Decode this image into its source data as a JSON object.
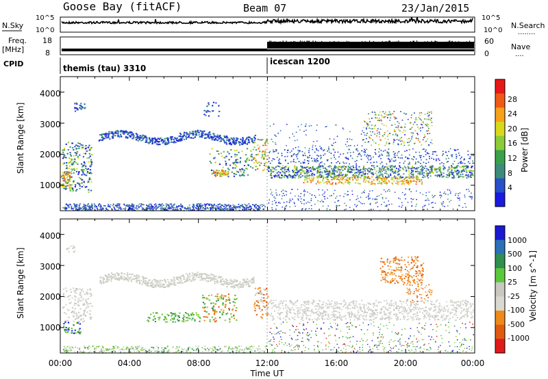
{
  "header": {
    "station": "Goose Bay (fitACF)",
    "beam": "Beam 07",
    "date": "23/Jan/2015"
  },
  "noise_panel": {
    "left_label": "N.Sky",
    "right_label": "N.Search",
    "right_line": "........",
    "left_ticks": [
      "10^5",
      "10^0"
    ],
    "right_ticks": [
      "10^5",
      "10^0"
    ]
  },
  "freq_panel": {
    "left_label_1": "Freq.",
    "left_label_2": "[MHz]",
    "right_label": "Nave",
    "right_line": "....",
    "left_ticks": [
      "18",
      "8"
    ],
    "right_ticks": [
      "60",
      "0"
    ]
  },
  "cpid": {
    "label": "CPID",
    "segments": [
      {
        "start_hour": 0,
        "name": "themis (tau) 3310"
      },
      {
        "start_hour": 12,
        "name": "icescan 1200"
      }
    ]
  },
  "chart_data": [
    {
      "type": "heatmap",
      "quantity": "Power",
      "ylabel": "Slant Range [km]",
      "ylim": [
        180,
        4500
      ],
      "yticks": [
        "1000",
        "2000",
        "3000",
        "4000"
      ],
      "xticks": [
        "00:00",
        "04:00",
        "08:00",
        "12:00",
        "16:00",
        "20:00",
        "00:00"
      ],
      "xlim_hours": [
        0,
        24
      ],
      "colorbar": {
        "label": "Power [dB]",
        "ticks": [
          "28",
          "24",
          "20",
          "16",
          "12",
          "8",
          "4"
        ],
        "colors": [
          "#e81818",
          "#f05a14",
          "#f7a21a",
          "#d9d91c",
          "#8ccc3a",
          "#3aa14a",
          "#3d8c7a",
          "#2850c8",
          "#1a1ae0"
        ]
      }
    },
    {
      "type": "heatmap",
      "quantity": "Velocity",
      "ylabel": "Slant Range [km]",
      "ylim": [
        180,
        4500
      ],
      "yticks": [
        "1000",
        "2000",
        "3000",
        "4000"
      ],
      "xticks": [
        "00:00",
        "04:00",
        "08:00",
        "12:00",
        "16:00",
        "20:00",
        "00:00"
      ],
      "xlim_hours": [
        0,
        24
      ],
      "xlabel": "Time UT",
      "colorbar": {
        "label": "Velocity [m s^-1]",
        "ticks": [
          "1000",
          "500",
          "100",
          "25",
          "-25",
          "-100",
          "-500",
          "-1000"
        ],
        "colors": [
          "#1a1ad2",
          "#2d6fb8",
          "#2f8f4f",
          "#5bc83c",
          "#c8c8c0",
          "#d9d9d0",
          "#ee8a1a",
          "#e05a12",
          "#e01a1a"
        ]
      }
    }
  ]
}
